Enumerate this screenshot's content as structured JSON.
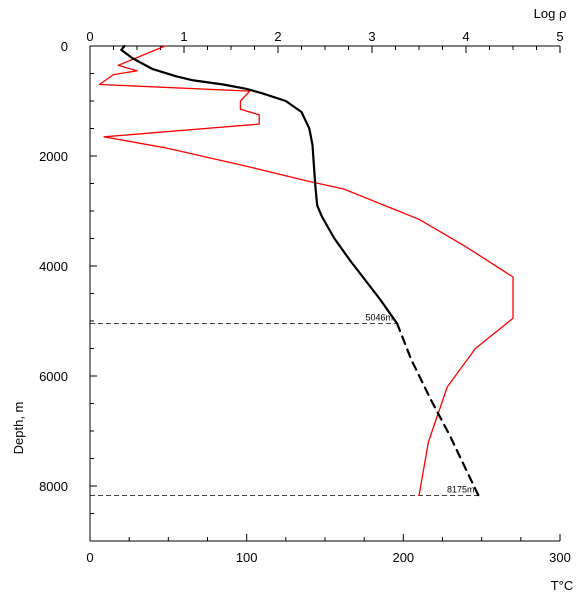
{
  "chart_data": {
    "type": "line",
    "top_axis": {
      "label": "Log ρ",
      "range": [
        0,
        5
      ],
      "ticks": [
        "0",
        "1",
        "2",
        "3",
        "4",
        "5"
      ]
    },
    "bottom_axis": {
      "label": "T°C",
      "range": [
        0,
        300
      ],
      "ticks": [
        "0",
        "100",
        "200",
        "300"
      ]
    },
    "y_axis": {
      "label": "Depth, m",
      "range": [
        0,
        9000
      ],
      "inverted": true,
      "ticks": [
        "0",
        "2000",
        "4000",
        "6000",
        "8000"
      ]
    },
    "grid": false,
    "series": [
      {
        "color": "#ff0000",
        "axis": "top",
        "x": [
          0.8,
          0.3,
          0.5,
          0.25,
          0.1,
          1.7,
          1.6,
          1.6,
          1.8,
          1.8,
          0.15,
          0.8,
          1.7,
          2.3,
          2.7,
          3.5,
          4.0,
          4.5,
          4.5,
          4.1,
          3.8,
          3.6,
          3.5
        ],
        "y": [
          0,
          350,
          450,
          520,
          700,
          820,
          1000,
          1150,
          1250,
          1420,
          1650,
          1850,
          2200,
          2450,
          2600,
          3150,
          3650,
          4200,
          4950,
          5500,
          6200,
          7200,
          8175
        ]
      },
      {
        "color": "#000000",
        "axis": "bottom",
        "style": "solid",
        "x": [
          22,
          20,
          27,
          40,
          55,
          65,
          85,
          100,
          110,
          125,
          135,
          140,
          142,
          143,
          144,
          145,
          148,
          152,
          156,
          166,
          185,
          196
        ],
        "y": [
          0,
          70,
          220,
          420,
          550,
          620,
          700,
          780,
          860,
          1000,
          1200,
          1500,
          1800,
          2200,
          2600,
          2900,
          3100,
          3300,
          3500,
          3900,
          4600,
          5046
        ]
      },
      {
        "color": "#000000",
        "axis": "bottom",
        "style": "dashed",
        "x": [
          196,
          205,
          217,
          230,
          240,
          248
        ],
        "y": [
          5046,
          5700,
          6400,
          7100,
          7700,
          8175
        ]
      }
    ],
    "reference_lines": [
      {
        "depth": 5046,
        "label": "5046m"
      },
      {
        "depth": 8175,
        "label": "8175m"
      }
    ]
  }
}
